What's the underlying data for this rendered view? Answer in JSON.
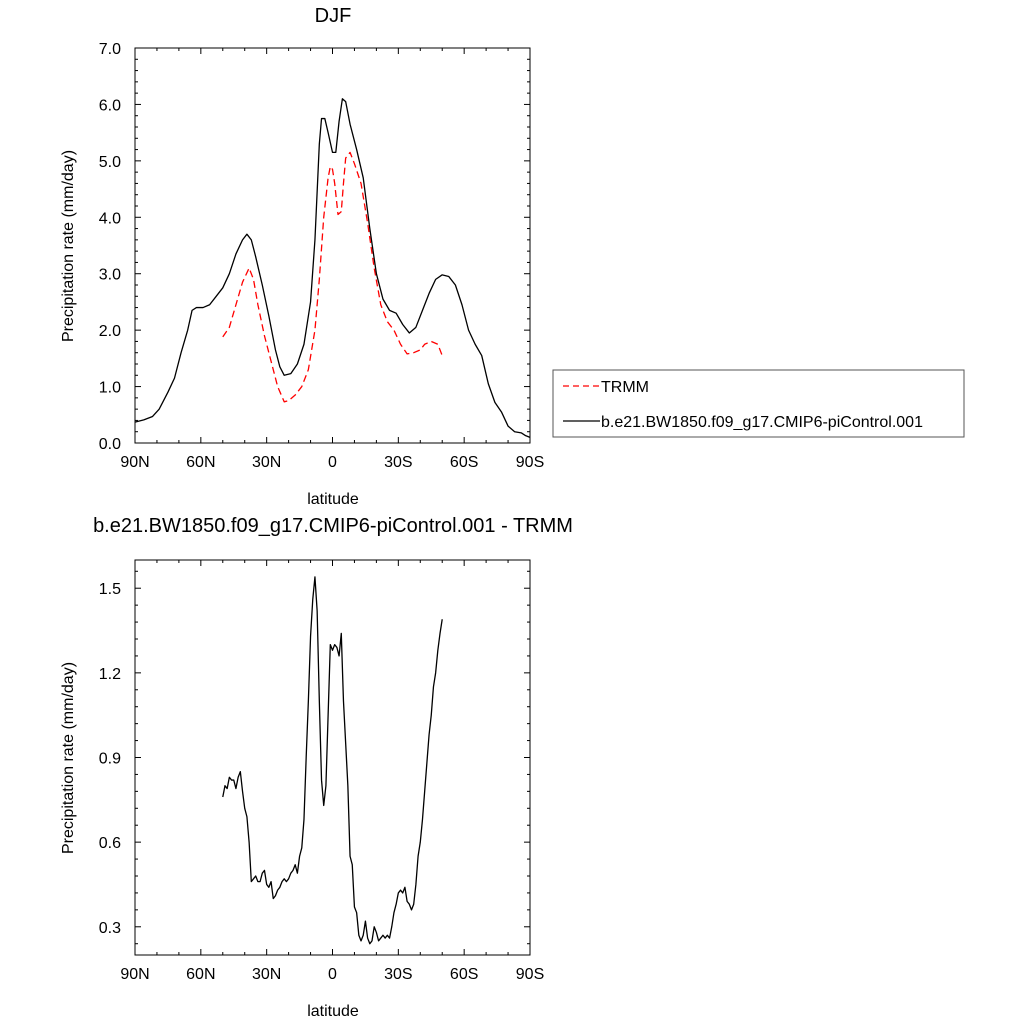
{
  "chart_data": [
    {
      "type": "line",
      "title": "DJF",
      "xlabel": "latitude",
      "ylabel": "Precipitation rate (mm/day)",
      "xlim": [
        90,
        -90
      ],
      "ylim": [
        0,
        7
      ],
      "x_ticks": [
        90,
        60,
        30,
        0,
        -30,
        -60,
        -90
      ],
      "x_tick_labels": [
        "90N",
        "60N",
        "30N",
        "0",
        "30S",
        "60S",
        "90S"
      ],
      "y_ticks": [
        0,
        1,
        2,
        3,
        4,
        5,
        6,
        7
      ],
      "y_tick_labels": [
        "0.0",
        "1.0",
        "2.0",
        "3.0",
        "4.0",
        "5.0",
        "6.0",
        "7.0"
      ],
      "legend": {
        "position": "right",
        "entries": [
          "TRMM",
          "b.e21.BW1850.f09_g17.CMIP6-piControl.001"
        ]
      },
      "series": [
        {
          "name": "TRMM",
          "color": "#ff0000",
          "style": "dashed",
          "points": [
            [
              50,
              1.88
            ],
            [
              47,
              2.05
            ],
            [
              44,
              2.45
            ],
            [
              41,
              2.85
            ],
            [
              38,
              3.1
            ],
            [
              36,
              2.9
            ],
            [
              34,
              2.45
            ],
            [
              31,
              1.9
            ],
            [
              28,
              1.45
            ],
            [
              25,
              1.0
            ],
            [
              22,
              0.73
            ],
            [
              20,
              0.75
            ],
            [
              17,
              0.85
            ],
            [
              14,
              1.0
            ],
            [
              11,
              1.3
            ],
            [
              8,
              2.0
            ],
            [
              6,
              2.9
            ],
            [
              4,
              4.0
            ],
            [
              2,
              4.7
            ],
            [
              1,
              4.9
            ],
            [
              0,
              4.85
            ],
            [
              -1,
              4.6
            ],
            [
              -2.5,
              4.05
            ],
            [
              -4,
              4.1
            ],
            [
              -5,
              4.6
            ],
            [
              -6,
              5.05
            ],
            [
              -8,
              5.15
            ],
            [
              -10,
              4.95
            ],
            [
              -13,
              4.6
            ],
            [
              -16,
              3.9
            ],
            [
              -19,
              3.1
            ],
            [
              -22,
              2.45
            ],
            [
              -25,
              2.15
            ],
            [
              -28,
              2.0
            ],
            [
              -31,
              1.75
            ],
            [
              -34,
              1.58
            ],
            [
              -37,
              1.6
            ],
            [
              -40,
              1.65
            ],
            [
              -42,
              1.75
            ],
            [
              -45,
              1.8
            ],
            [
              -48,
              1.75
            ],
            [
              -50,
              1.55
            ]
          ]
        },
        {
          "name": "b.e21.BW1850.f09_g17.CMIP6-piControl.001",
          "color": "#000000",
          "style": "solid",
          "points": [
            [
              90,
              0.37
            ],
            [
              86,
              0.41
            ],
            [
              82,
              0.47
            ],
            [
              79,
              0.6
            ],
            [
              75,
              0.9
            ],
            [
              72,
              1.15
            ],
            [
              69,
              1.6
            ],
            [
              66,
              2.0
            ],
            [
              64,
              2.35
            ],
            [
              62,
              2.4
            ],
            [
              59,
              2.4
            ],
            [
              56,
              2.45
            ],
            [
              53,
              2.6
            ],
            [
              50,
              2.75
            ],
            [
              47,
              3.0
            ],
            [
              44,
              3.35
            ],
            [
              41,
              3.6
            ],
            [
              39,
              3.7
            ],
            [
              37,
              3.6
            ],
            [
              35,
              3.3
            ],
            [
              32,
              2.8
            ],
            [
              29,
              2.25
            ],
            [
              26,
              1.65
            ],
            [
              24,
              1.35
            ],
            [
              22,
              1.2
            ],
            [
              19,
              1.23
            ],
            [
              16,
              1.4
            ],
            [
              13,
              1.75
            ],
            [
              10,
              2.5
            ],
            [
              8,
              3.6
            ],
            [
              6,
              5.3
            ],
            [
              5,
              5.75
            ],
            [
              3.5,
              5.75
            ],
            [
              2,
              5.5
            ],
            [
              0,
              5.15
            ],
            [
              -1.5,
              5.15
            ],
            [
              -3,
              5.7
            ],
            [
              -4.5,
              6.1
            ],
            [
              -6,
              6.05
            ],
            [
              -8,
              5.65
            ],
            [
              -11,
              5.2
            ],
            [
              -14,
              4.7
            ],
            [
              -17,
              3.8
            ],
            [
              -20,
              3.0
            ],
            [
              -23,
              2.55
            ],
            [
              -26,
              2.35
            ],
            [
              -29,
              2.3
            ],
            [
              -32,
              2.1
            ],
            [
              -35,
              1.95
            ],
            [
              -38,
              2.05
            ],
            [
              -41,
              2.35
            ],
            [
              -44,
              2.65
            ],
            [
              -47,
              2.9
            ],
            [
              -50,
              2.98
            ],
            [
              -53,
              2.95
            ],
            [
              -56,
              2.8
            ],
            [
              -59,
              2.45
            ],
            [
              -62,
              2.0
            ],
            [
              -65,
              1.75
            ],
            [
              -68,
              1.55
            ],
            [
              -71,
              1.05
            ],
            [
              -74,
              0.72
            ],
            [
              -77,
              0.55
            ],
            [
              -80,
              0.3
            ],
            [
              -83,
              0.2
            ],
            [
              -86,
              0.18
            ],
            [
              -88,
              0.13
            ],
            [
              -90,
              0.1
            ]
          ]
        }
      ]
    },
    {
      "type": "line",
      "title": "b.e21.BW1850.f09_g17.CMIP6-piControl.001 - TRMM",
      "xlabel": "latitude",
      "ylabel": "Precipitation rate (mm/day)",
      "xlim": [
        90,
        -90
      ],
      "ylim": [
        0.2,
        1.6
      ],
      "x_ticks": [
        90,
        60,
        30,
        0,
        -30,
        -60,
        -90
      ],
      "x_tick_labels": [
        "90N",
        "60N",
        "30N",
        "0",
        "30S",
        "60S",
        "90S"
      ],
      "y_ticks": [
        0.3,
        0.6,
        0.9,
        1.2,
        1.5
      ],
      "y_tick_labels": [
        "0.3",
        "0.6",
        "0.9",
        "1.2",
        "1.5"
      ],
      "series": [
        {
          "name": "b.e21.BW1850.f09_g17.CMIP6-piControl.001 - TRMM",
          "color": "#000000",
          "style": "solid",
          "points": [
            [
              50,
              0.76
            ],
            [
              49,
              0.8
            ],
            [
              48,
              0.79
            ],
            [
              47,
              0.83
            ],
            [
              46,
              0.82
            ],
            [
              45,
              0.82
            ],
            [
              44,
              0.79
            ],
            [
              43,
              0.83
            ],
            [
              42,
              0.85
            ],
            [
              41,
              0.78
            ],
            [
              40,
              0.72
            ],
            [
              39,
              0.69
            ],
            [
              38,
              0.6
            ],
            [
              37,
              0.46
            ],
            [
              36,
              0.47
            ],
            [
              35,
              0.48
            ],
            [
              34,
              0.46
            ],
            [
              33,
              0.46
            ],
            [
              32,
              0.49
            ],
            [
              31,
              0.5
            ],
            [
              30,
              0.45
            ],
            [
              29,
              0.44
            ],
            [
              28,
              0.46
            ],
            [
              27,
              0.4
            ],
            [
              26,
              0.41
            ],
            [
              25,
              0.43
            ],
            [
              24,
              0.44
            ],
            [
              23,
              0.46
            ],
            [
              22,
              0.47
            ],
            [
              21,
              0.46
            ],
            [
              20,
              0.47
            ],
            [
              19,
              0.49
            ],
            [
              18,
              0.5
            ],
            [
              17,
              0.52
            ],
            [
              16,
              0.49
            ],
            [
              15,
              0.55
            ],
            [
              14,
              0.58
            ],
            [
              13,
              0.68
            ],
            [
              12,
              0.9
            ],
            [
              11,
              1.1
            ],
            [
              10,
              1.33
            ],
            [
              9,
              1.46
            ],
            [
              8,
              1.54
            ],
            [
              7,
              1.42
            ],
            [
              6,
              1.1
            ],
            [
              5,
              0.82
            ],
            [
              4,
              0.73
            ],
            [
              3,
              0.8
            ],
            [
              2,
              1.05
            ],
            [
              1,
              1.3
            ],
            [
              0,
              1.28
            ],
            [
              -1,
              1.3
            ],
            [
              -2,
              1.29
            ],
            [
              -3,
              1.26
            ],
            [
              -4,
              1.34
            ],
            [
              -5,
              1.1
            ],
            [
              -6,
              0.95
            ],
            [
              -7,
              0.8
            ],
            [
              -8,
              0.55
            ],
            [
              -9,
              0.52
            ],
            [
              -10,
              0.37
            ],
            [
              -11,
              0.35
            ],
            [
              -12,
              0.27
            ],
            [
              -13,
              0.25
            ],
            [
              -14,
              0.27
            ],
            [
              -15,
              0.32
            ],
            [
              -16,
              0.26
            ],
            [
              -17,
              0.24
            ],
            [
              -18,
              0.25
            ],
            [
              -19,
              0.3
            ],
            [
              -20,
              0.28
            ],
            [
              -21,
              0.25
            ],
            [
              -22,
              0.26
            ],
            [
              -23,
              0.27
            ],
            [
              -24,
              0.26
            ],
            [
              -25,
              0.27
            ],
            [
              -26,
              0.26
            ],
            [
              -27,
              0.3
            ],
            [
              -28,
              0.35
            ],
            [
              -29,
              0.38
            ],
            [
              -30,
              0.42
            ],
            [
              -31,
              0.43
            ],
            [
              -32,
              0.42
            ],
            [
              -33,
              0.44
            ],
            [
              -34,
              0.39
            ],
            [
              -35,
              0.38
            ],
            [
              -36,
              0.36
            ],
            [
              -37,
              0.38
            ],
            [
              -38,
              0.45
            ],
            [
              -39,
              0.55
            ],
            [
              -40,
              0.6
            ],
            [
              -41,
              0.68
            ],
            [
              -42,
              0.78
            ],
            [
              -43,
              0.88
            ],
            [
              -44,
              0.98
            ],
            [
              -45,
              1.05
            ],
            [
              -46,
              1.15
            ],
            [
              -47,
              1.2
            ],
            [
              -48,
              1.28
            ],
            [
              -49,
              1.34
            ],
            [
              -50,
              1.39
            ]
          ]
        }
      ]
    }
  ]
}
